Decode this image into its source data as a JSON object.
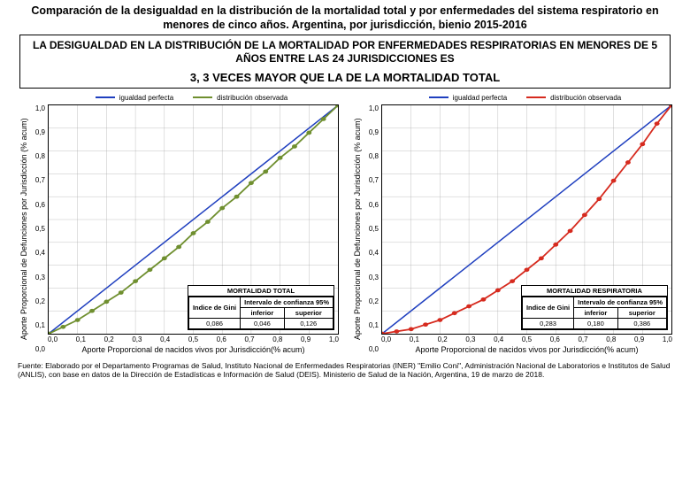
{
  "title": "Comparación de la desigualdad en la distribución de la mortalidad total y por enfermedades del sistema respiratorio en menores de cinco años. Argentina, por jurisdicción, bienio 2015-2016",
  "callout": {
    "line1": "LA DESIGUALDAD EN LA DISTRIBUCIÓN DE LA MORTALIDAD POR ENFERMEDADES RESPIRATORIAS EN MENORES DE 5 AÑOS ENTRE LAS 24 JURISDICCIONES ES",
    "line2": "3, 3 VECES MAYOR QUE LA DE LA MORTALIDAD TOTAL"
  },
  "legend": {
    "perfect": "igualdad perfecta",
    "observed": "distribución observada"
  },
  "axes": {
    "ylabel": "Aporte Proporcional de Defunciones por Jurisdicción (% acum)",
    "xlabel": "Aporte Proporcional de nacidos vivos por Jurisdicción(% acum)",
    "ticks": [
      "0,0",
      "0,1",
      "0,2",
      "0,3",
      "0,4",
      "0,5",
      "0,6",
      "0,7",
      "0,8",
      "0,9",
      "1,0"
    ],
    "grid_color": "#999999",
    "border_color": "#000000"
  },
  "left": {
    "perfect_color": "#1f3fbf",
    "observed_color": "#6f8f2f",
    "curve": [
      [
        0,
        0
      ],
      [
        0.05,
        0.03
      ],
      [
        0.1,
        0.06
      ],
      [
        0.15,
        0.1
      ],
      [
        0.2,
        0.14
      ],
      [
        0.25,
        0.18
      ],
      [
        0.3,
        0.23
      ],
      [
        0.35,
        0.28
      ],
      [
        0.4,
        0.33
      ],
      [
        0.45,
        0.38
      ],
      [
        0.5,
        0.44
      ],
      [
        0.55,
        0.49
      ],
      [
        0.6,
        0.55
      ],
      [
        0.65,
        0.6
      ],
      [
        0.7,
        0.66
      ],
      [
        0.75,
        0.71
      ],
      [
        0.8,
        0.77
      ],
      [
        0.85,
        0.82
      ],
      [
        0.9,
        0.88
      ],
      [
        0.95,
        0.94
      ],
      [
        1.0,
        1.0
      ]
    ],
    "gini": {
      "title": "MORTALIDAD TOTAL",
      "row_label": "Indice de Gini",
      "ci_label": "Intervalo de confianza 95%",
      "inf_label": "inferior",
      "sup_label": "superior",
      "value": "0,086",
      "inf": "0,046",
      "sup": "0,126"
    }
  },
  "right": {
    "perfect_color": "#1f3fbf",
    "observed_color": "#d62a1e",
    "curve": [
      [
        0,
        0
      ],
      [
        0.05,
        0.01
      ],
      [
        0.1,
        0.02
      ],
      [
        0.15,
        0.04
      ],
      [
        0.2,
        0.06
      ],
      [
        0.25,
        0.09
      ],
      [
        0.3,
        0.12
      ],
      [
        0.35,
        0.15
      ],
      [
        0.4,
        0.19
      ],
      [
        0.45,
        0.23
      ],
      [
        0.5,
        0.28
      ],
      [
        0.55,
        0.33
      ],
      [
        0.6,
        0.39
      ],
      [
        0.65,
        0.45
      ],
      [
        0.7,
        0.52
      ],
      [
        0.75,
        0.59
      ],
      [
        0.8,
        0.67
      ],
      [
        0.85,
        0.75
      ],
      [
        0.9,
        0.83
      ],
      [
        0.95,
        0.92
      ],
      [
        1.0,
        1.0
      ]
    ],
    "gini": {
      "title": "MORTALIDAD RESPIRATORIA",
      "row_label": "Indice de Gini",
      "ci_label": "Intervalo de confianza 95%",
      "inf_label": "inferior",
      "sup_label": "superior",
      "value": "0,283",
      "inf": "0,180",
      "sup": "0,386"
    }
  },
  "source": "Fuente: Elaborado por el Departamento Programas de Salud, Instituto Nacional de Enfermedades Respiratorias (INER) \"Emilio Coni\", Administración Nacional de Laboratorios e Institutos de Salud (ANLIS), con base en datos de la Dirección de Estadísticas e Información de Salud (DEIS). Ministerio de Salud de la Nación, Argentina, 19 de marzo de 2018."
}
